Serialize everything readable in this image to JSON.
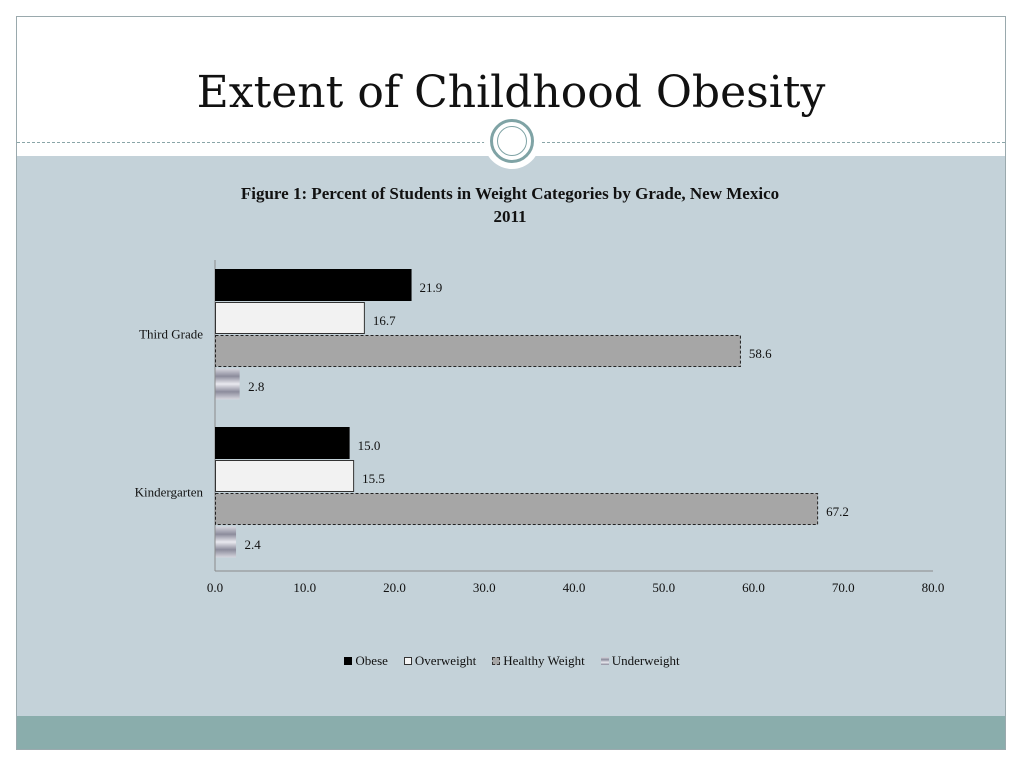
{
  "slide": {
    "title": "Extent of Childhood Obesity"
  },
  "colors": {
    "panel": "#c4d2d9",
    "footer": "#8aadac",
    "obese": "#000000",
    "overweight": "#f2f2f2",
    "healthy": "#a6a6a6",
    "underweight": "#9a9aaa"
  },
  "chart_data": {
    "type": "bar",
    "orientation": "horizontal",
    "title": "Figure 1:  Percent of Students in Weight Categories by Grade, New Mexico 2011",
    "title_line1": "Figure 1:  Percent of Students in Weight Categories by Grade, New Mexico",
    "title_line2": "2011",
    "categories": [
      "Third Grade",
      "Kindergarten"
    ],
    "series": [
      {
        "name": "Obese",
        "values": [
          21.9,
          15.0
        ],
        "labels": [
          "21.9",
          "15.0"
        ]
      },
      {
        "name": "Overweight",
        "values": [
          16.7,
          15.5
        ],
        "labels": [
          "16.7",
          "15.5"
        ]
      },
      {
        "name": "Healthy Weight",
        "values": [
          58.6,
          67.2
        ],
        "labels": [
          "58.6",
          "67.2"
        ]
      },
      {
        "name": "Underweight",
        "values": [
          2.8,
          2.4
        ],
        "labels": [
          "2.8",
          "2.4"
        ]
      }
    ],
    "xlim": [
      0,
      80
    ],
    "xticks": [
      0,
      10,
      20,
      30,
      40,
      50,
      60,
      70,
      80
    ],
    "xtick_labels": [
      "0.0",
      "10.0",
      "20.0",
      "30.0",
      "40.0",
      "50.0",
      "60.0",
      "70.0",
      "80.0"
    ],
    "xlabel": "",
    "ylabel": "",
    "grid": false,
    "legend_position": "bottom"
  }
}
